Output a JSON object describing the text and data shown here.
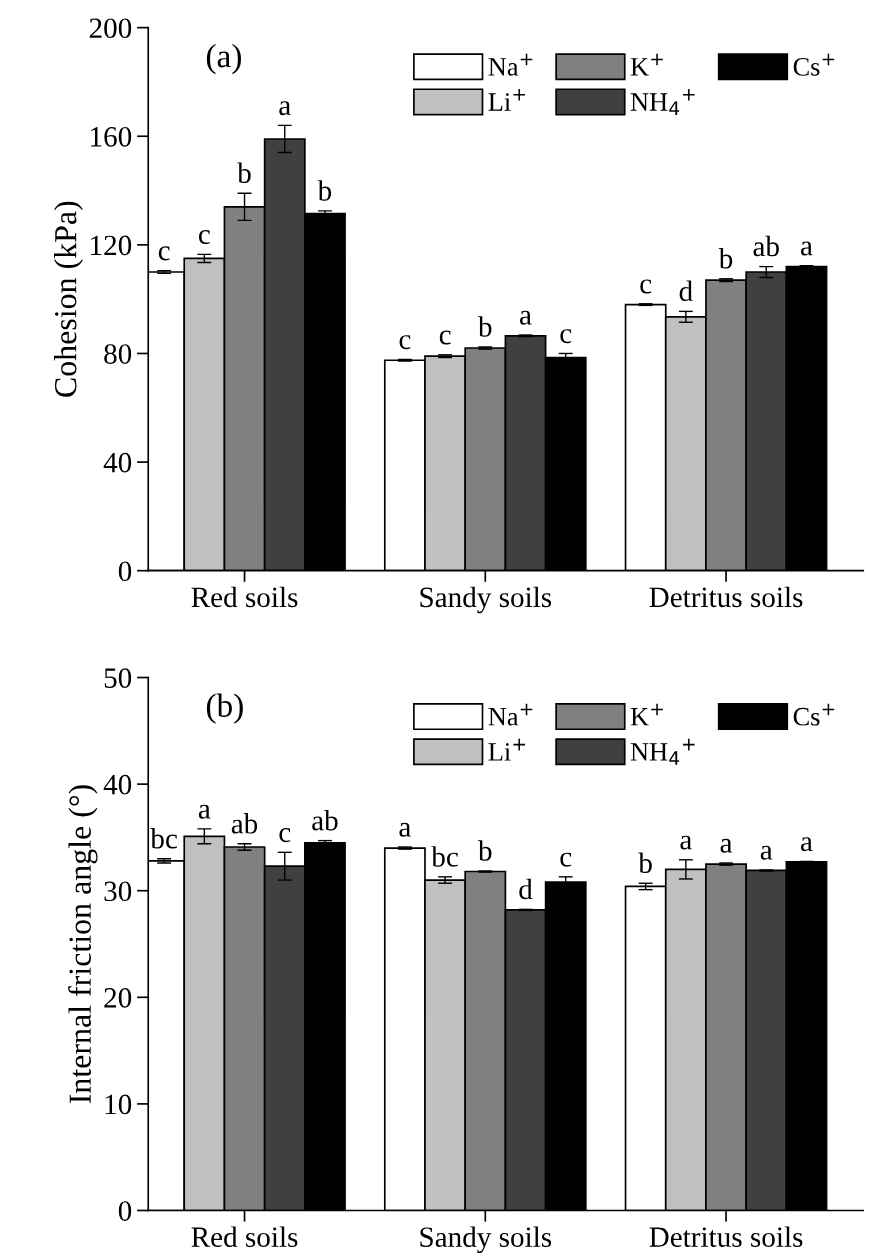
{
  "chart_data": [
    {
      "type": "bar",
      "ylabel": "Cohesion (kPa)",
      "annotations": [
        "(a)"
      ],
      "categories": [
        "Red soils",
        "Sandy soils",
        "Detritus soils"
      ],
      "ylim": [
        0,
        200
      ],
      "yticks": [
        0,
        40,
        80,
        120,
        160,
        200
      ],
      "legend": "top right",
      "grid": false,
      "series": [
        {
          "name": "Na$^{+}$",
          "color": "#ffffff",
          "values": [
            110,
            77.5,
            98
          ],
          "errors": [
            0.5,
            0.3,
            0.3
          ],
          "value_labels": [
            "c",
            "c",
            "c"
          ]
        },
        {
          "name": "Li$^{+}$",
          "color": "#c0c0c0",
          "values": [
            115,
            79,
            93.5
          ],
          "errors": [
            1.5,
            0.5,
            2
          ],
          "value_labels": [
            "c",
            "c",
            "d"
          ]
        },
        {
          "name": "K$^{+}$",
          "color": "#808080",
          "values": [
            134,
            82,
            107
          ],
          "errors": [
            5,
            0.4,
            0.5
          ],
          "value_labels": [
            "b",
            "b",
            "b"
          ]
        },
        {
          "name": "NH$_{4}$$^{+}$",
          "color": "#404040",
          "values": [
            159,
            86.5,
            110
          ],
          "errors": [
            5,
            0.3,
            2
          ],
          "value_labels": [
            "a",
            "a",
            "ab"
          ]
        },
        {
          "name": "Cs$^{+}$",
          "color": "#000000",
          "values": [
            131.5,
            78.5,
            112
          ],
          "errors": [
            1,
            1.5,
            0.3
          ],
          "value_labels": [
            "b",
            "c",
            "a"
          ]
        }
      ]
    },
    {
      "type": "bar",
      "ylabel": "Internal friction angle (°)",
      "annotations": [
        "(b)"
      ],
      "categories": [
        "Red soils",
        "Sandy soils",
        "Detritus soils"
      ],
      "ylim": [
        0,
        50
      ],
      "yticks": [
        0,
        10,
        20,
        30,
        40,
        50
      ],
      "legend": "top right",
      "grid": false,
      "series": [
        {
          "name": "Na$^{+}$",
          "color": "#ffffff",
          "values": [
            32.8,
            34,
            30.4
          ],
          "errors": [
            0.2,
            0.1,
            0.3
          ],
          "value_labels": [
            "bc",
            "a",
            "b"
          ]
        },
        {
          "name": "Li$^{+}$",
          "color": "#c0c0c0",
          "values": [
            35.1,
            31,
            32
          ],
          "errors": [
            0.7,
            0.3,
            0.9
          ],
          "value_labels": [
            "a",
            "bc",
            "a"
          ]
        },
        {
          "name": "K$^{+}$",
          "color": "#808080",
          "values": [
            34.1,
            31.8,
            32.5
          ],
          "errors": [
            0.3,
            0.05,
            0.1
          ],
          "value_labels": [
            "ab",
            "b",
            "a"
          ]
        },
        {
          "name": "NH$_{4}$$^{+}$",
          "color": "#404040",
          "values": [
            32.3,
            28.2,
            31.9
          ],
          "errors": [
            1.3,
            0.05,
            0.05
          ],
          "value_labels": [
            "c",
            "d",
            "a"
          ]
        },
        {
          "name": "Cs$^{+}$",
          "color": "#000000",
          "values": [
            34.5,
            30.8,
            32.7
          ],
          "errors": [
            0.2,
            0.5,
            0.05
          ],
          "value_labels": [
            "ab",
            "c",
            "a"
          ]
        }
      ]
    }
  ]
}
